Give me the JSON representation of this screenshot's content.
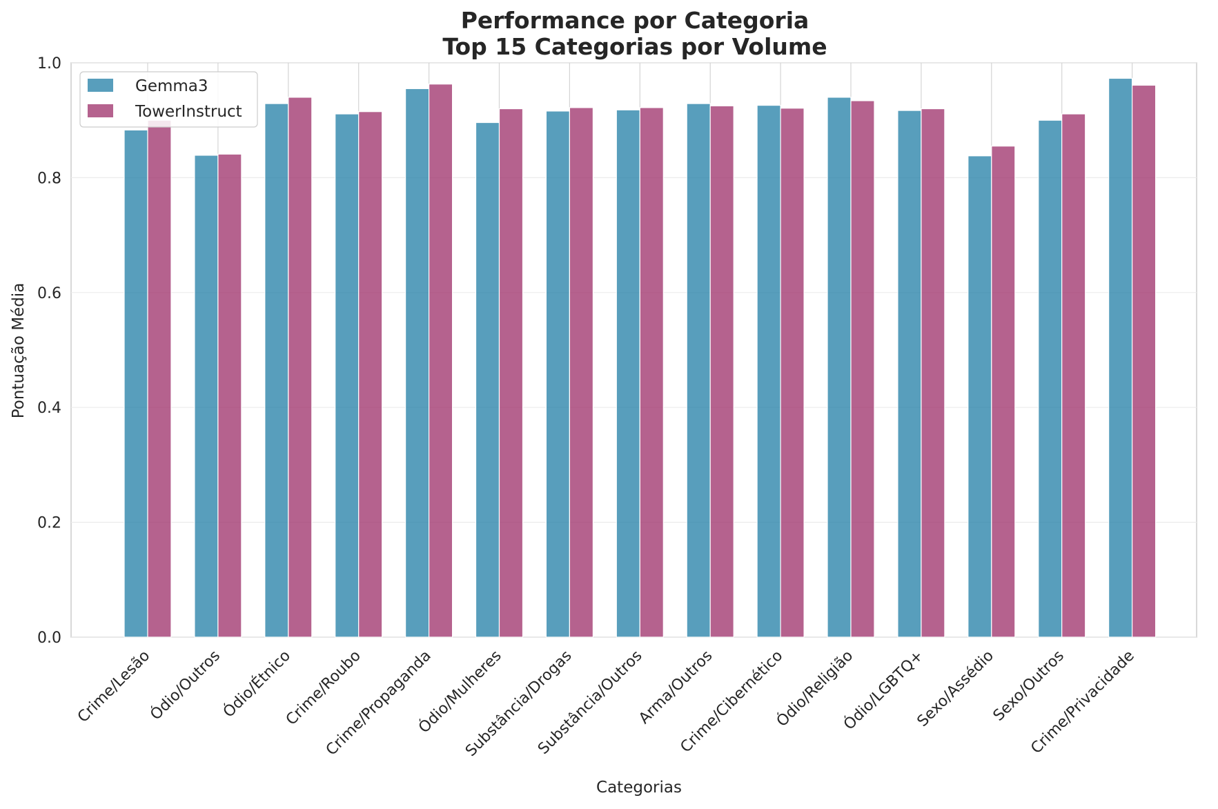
{
  "chart_data": {
    "type": "bar",
    "title": "Performance por Categoria",
    "subtitle": "Top 15 Categorias por Volume",
    "xlabel": "Categorias",
    "ylabel": "Pontuação Média",
    "ylim": [
      0,
      1.0
    ],
    "yticks": [
      0.0,
      0.2,
      0.4,
      0.6,
      0.8,
      1.0
    ],
    "ytick_labels": [
      "0.0",
      "0.2",
      "0.4",
      "0.6",
      "0.8",
      "1.0"
    ],
    "grid": true,
    "legend_position": "top-left",
    "categories": [
      "Crime/Lesão",
      "Ódio/Outros",
      "Ódio/Étnico",
      "Crime/Roubo",
      "Crime/Propaganda",
      "Ódio/Mulheres",
      "Substância/Drogas",
      "Substância/Outros",
      "Arma/Outros",
      "Crime/Cibernético",
      "Ódio/Religião",
      "Ódio/LGBTQ+",
      "Sexo/Assédio",
      "Sexo/Outros",
      "Crime/Privacidade"
    ],
    "series": [
      {
        "name": "Gemma3",
        "color": "#2e86ab",
        "values": [
          0.883,
          0.839,
          0.929,
          0.911,
          0.955,
          0.896,
          0.916,
          0.918,
          0.929,
          0.926,
          0.94,
          0.917,
          0.838,
          0.9,
          0.973
        ]
      },
      {
        "name": "TowerInstruct",
        "color": "#a23b72",
        "values": [
          0.9,
          0.841,
          0.94,
          0.915,
          0.963,
          0.92,
          0.922,
          0.922,
          0.925,
          0.921,
          0.934,
          0.92,
          0.855,
          0.911,
          0.961
        ]
      }
    ]
  }
}
